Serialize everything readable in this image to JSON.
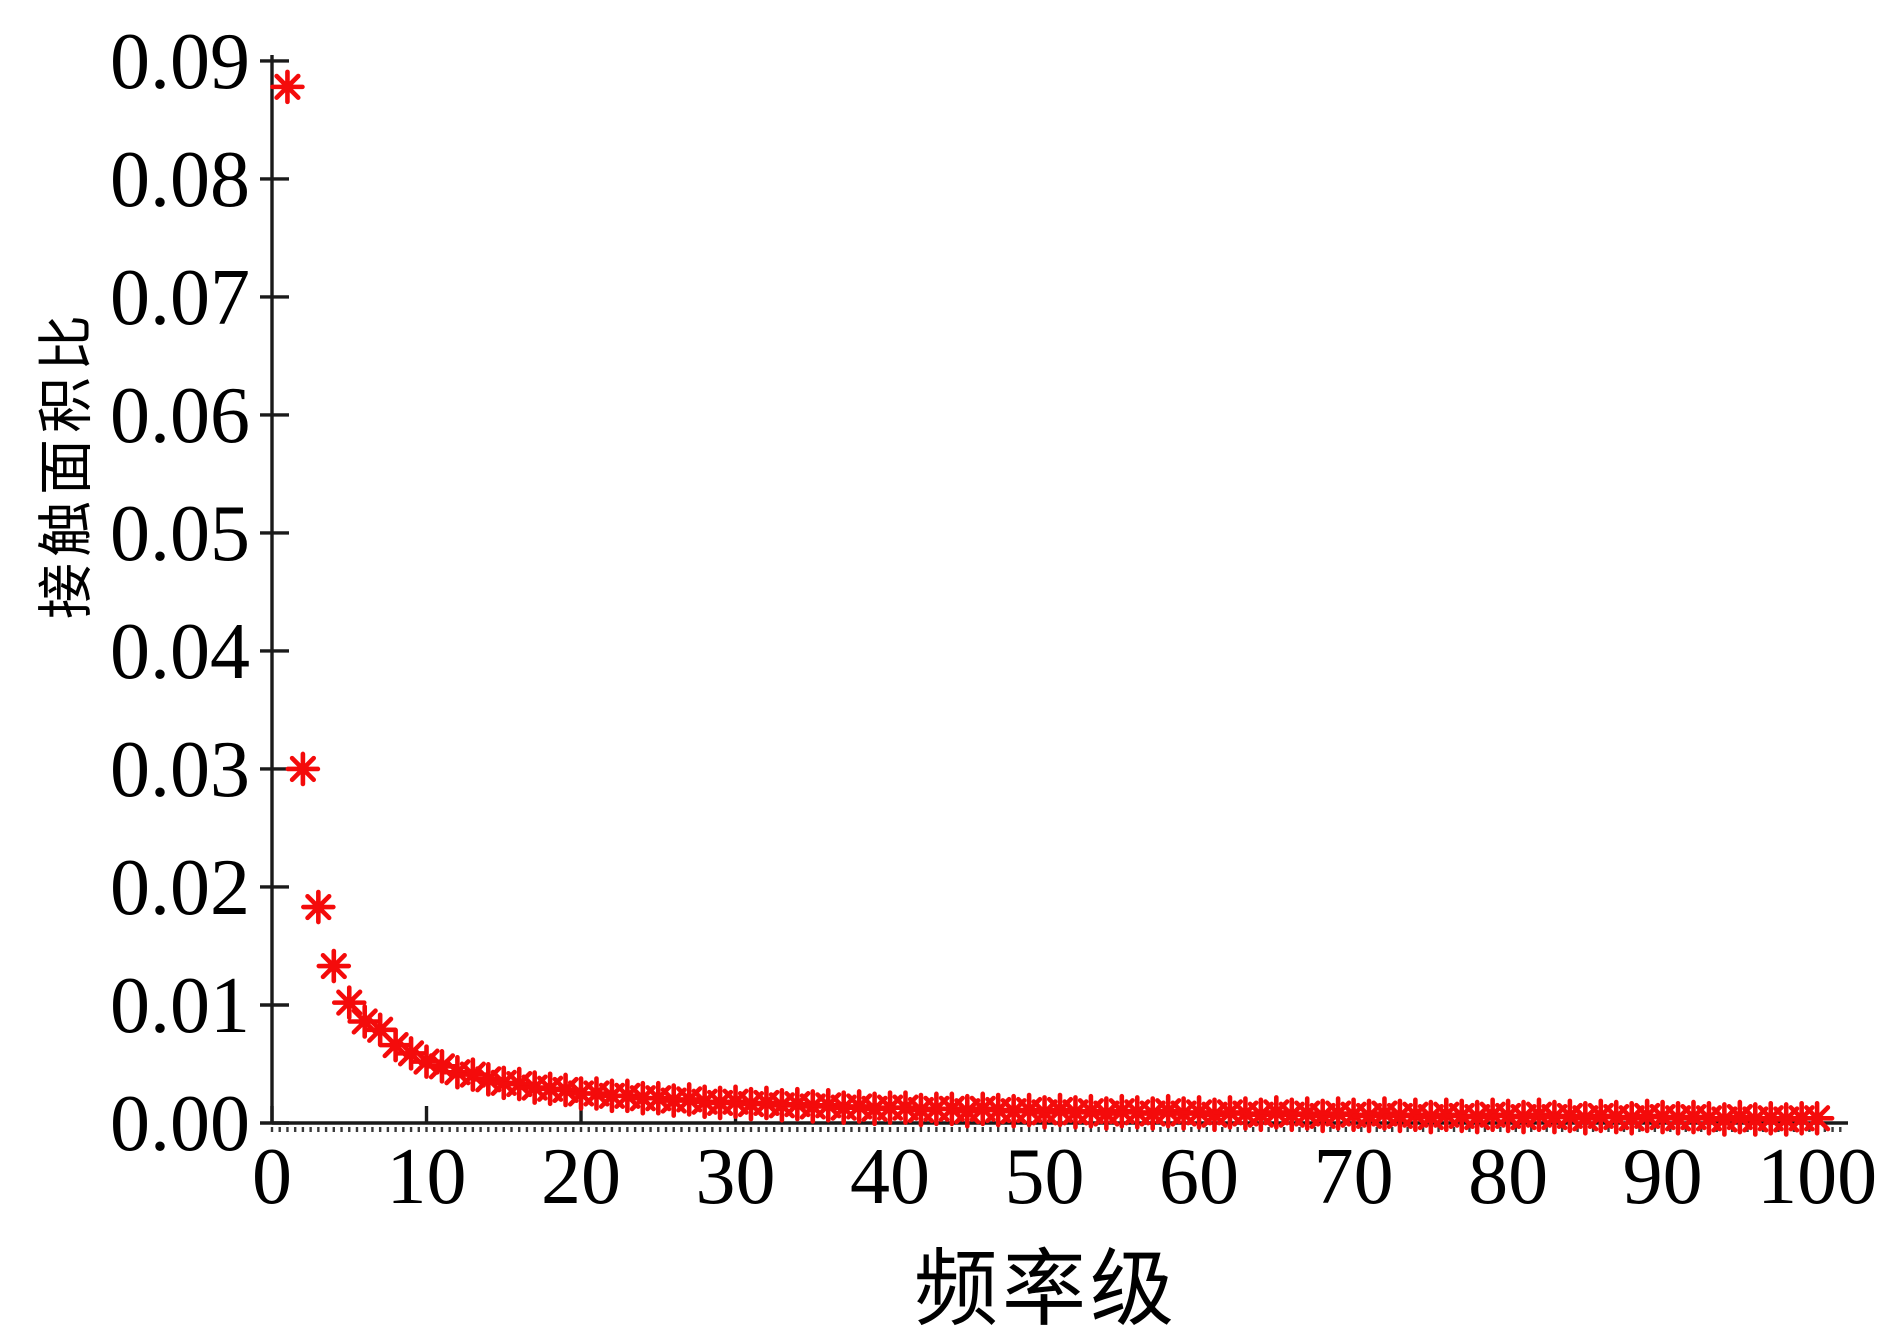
{
  "figure": {
    "background": "#ffffff",
    "axis_color": "#1a1a1a",
    "minor_tick_color": "#3a3a3a",
    "marker_color": "#f40b0b",
    "marker_shape": "asterisk-8-spoke"
  },
  "chart_data": {
    "type": "scatter",
    "title": "",
    "xlabel": "频率级",
    "ylabel": "接触面积比",
    "xlim": [
      0,
      102
    ],
    "ylim": [
      0,
      0.0905
    ],
    "grid": false,
    "legend": null,
    "x_ticks": [
      0,
      10,
      20,
      30,
      40,
      50,
      60,
      70,
      80,
      90,
      100
    ],
    "x_tick_labels": [
      "0",
      "10",
      "20",
      "30",
      "40",
      "50",
      "60",
      "70",
      "80",
      "90",
      "100"
    ],
    "x_minor_tick_step": 0.5,
    "y_ticks": [
      0,
      0.01,
      0.02,
      0.03,
      0.04,
      0.05,
      0.06,
      0.07,
      0.08,
      0.09
    ],
    "y_tick_labels": [
      "0.00",
      "0.01",
      "0.02",
      "0.03",
      "0.04",
      "0.05",
      "0.06",
      "0.07",
      "0.08",
      "0.09"
    ],
    "series": [
      {
        "name": "接触面积比",
        "marker": "*",
        "color": "#f40b0b",
        "x": [
          1,
          2,
          3,
          4,
          5,
          6,
          7,
          8,
          9,
          10,
          11,
          12,
          13,
          14,
          15,
          16,
          17,
          18,
          19,
          20,
          21,
          22,
          23,
          24,
          25,
          26,
          27,
          28,
          29,
          30,
          31,
          32,
          33,
          34,
          35,
          36,
          37,
          38,
          39,
          40,
          41,
          42,
          43,
          44,
          45,
          46,
          47,
          48,
          49,
          50,
          51,
          52,
          53,
          54,
          55,
          56,
          57,
          58,
          59,
          60,
          61,
          62,
          63,
          64,
          65,
          66,
          67,
          68,
          69,
          70,
          71,
          72,
          73,
          74,
          75,
          76,
          77,
          78,
          79,
          80,
          81,
          82,
          83,
          84,
          85,
          86,
          87,
          88,
          89,
          90,
          91,
          92,
          93,
          94,
          95,
          96,
          97,
          98,
          99,
          100
        ],
        "y": [
          0.0878,
          0.03,
          0.0183,
          0.0133,
          0.0102,
          0.0086,
          0.0079,
          0.0066,
          0.0059,
          0.0052,
          0.0048,
          0.0043,
          0.0041,
          0.0037,
          0.0034,
          0.0033,
          0.003,
          0.0029,
          0.0028,
          0.0025,
          0.0025,
          0.0023,
          0.0023,
          0.0021,
          0.0021,
          0.0019,
          0.002,
          0.0018,
          0.0017,
          0.0018,
          0.0016,
          0.0017,
          0.0015,
          0.0016,
          0.0014,
          0.0015,
          0.0013,
          0.0014,
          0.0012,
          0.0013,
          0.0013,
          0.0011,
          0.0012,
          0.0012,
          0.001,
          0.0012,
          0.0011,
          0.001,
          0.0011,
          0.0009,
          0.0011,
          0.0009,
          0.001,
          0.0008,
          0.001,
          0.0009,
          0.0008,
          0.001,
          0.0008,
          0.0009,
          0.0007,
          0.0009,
          0.0008,
          0.0007,
          0.0009,
          0.0007,
          0.0008,
          0.0006,
          0.0008,
          0.0007,
          0.0006,
          0.0008,
          0.0006,
          0.0007,
          0.0005,
          0.0007,
          0.0006,
          0.0005,
          0.0007,
          0.0006,
          0.0005,
          0.0007,
          0.0005,
          0.0006,
          0.0004,
          0.0006,
          0.0005,
          0.0004,
          0.0006,
          0.0005,
          0.0004,
          0.0005,
          0.0004,
          0.0003,
          0.0005,
          0.0003,
          0.0004,
          0.0003,
          0.0004,
          0.0004
        ]
      }
    ]
  }
}
